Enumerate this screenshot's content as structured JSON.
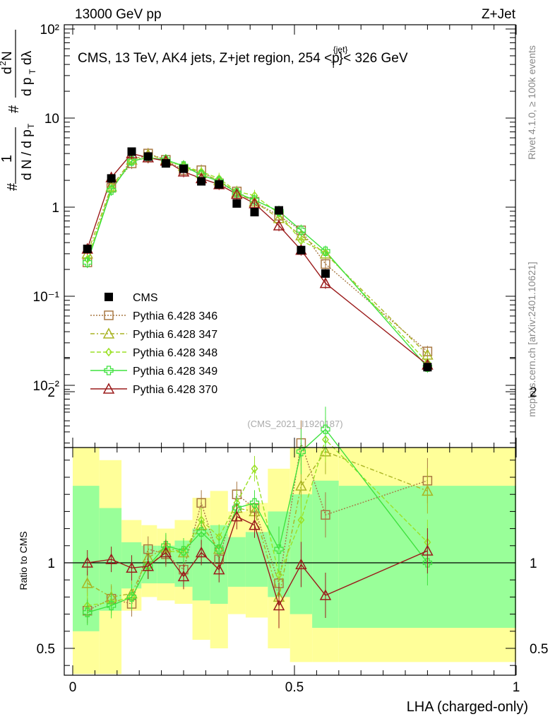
{
  "header": {
    "left": "13000 GeV pp",
    "right": "Z+Jet"
  },
  "side_text": {
    "rivet": "Rivet 4.1.0, ≥ 100k events",
    "mcplots": "mcplots.cern.ch [arXiv:2401.10621]"
  },
  "main": {
    "title": "CMS, 13 TeV, AK4 jets, Z+jet region, 254 <p",
    "title_sup": "{jet}",
    "title_sub": "T",
    "title_end": "}< 326 GeV",
    "ylabel": "1/(dN/dp_T) d²N/(dp_T dλ)",
    "watermark": "(CMS_2021_I1920187)",
    "ytick_labels": [
      "10²",
      "10",
      "1",
      "10⁻¹",
      "10⁻²"
    ]
  },
  "ratio": {
    "ylabel": "Ratio to CMS",
    "ytick_labels": [
      "2",
      "1",
      "0.5"
    ],
    "xlabel": "LHA (charged-only)",
    "xtick_labels": [
      "0",
      "0.5",
      "1"
    ]
  },
  "legend": [
    {
      "label": "CMS"
    },
    {
      "label": "Pythia 6.428 346"
    },
    {
      "label": "Pythia 6.428 347"
    },
    {
      "label": "Pythia 6.428 348"
    },
    {
      "label": "Pythia 6.428 349"
    },
    {
      "label": "Pythia 6.428 370"
    }
  ],
  "chart_data": [
    {
      "type": "scatter",
      "panel": "distribution",
      "yscale": "log",
      "xlim": [
        0,
        1
      ],
      "ylim": [
        0.002,
        100
      ],
      "xlabel": "LHA (charged-only)",
      "x": [
        0.033,
        0.087,
        0.133,
        0.17,
        0.21,
        0.25,
        0.29,
        0.33,
        0.37,
        0.41,
        0.465,
        0.515,
        0.57,
        0.8
      ],
      "series": [
        {
          "name": "CMS",
          "color": "#000000",
          "marker": "square-filled",
          "values": [
            0.34,
            2.1,
            4.2,
            3.7,
            3.1,
            2.7,
            1.95,
            1.8,
            1.1,
            0.88,
            0.92,
            0.33,
            0.18,
            0.016
          ]
        },
        {
          "name": "Pythia 6.428 346",
          "color": "#a87843",
          "marker": "square-open",
          "dash": "2,2",
          "values": [
            0.24,
            1.65,
            3.1,
            4.0,
            3.4,
            2.6,
            2.6,
            1.85,
            1.5,
            1.15,
            0.8,
            0.55,
            0.23,
            0.024
          ]
        },
        {
          "name": "Pythia 6.428 347",
          "color": "#a9b423",
          "marker": "triangle-open",
          "dash": "6,3,2,3",
          "values": [
            0.3,
            1.7,
            3.4,
            3.9,
            3.4,
            2.9,
            2.4,
            2.0,
            1.45,
            1.15,
            0.75,
            0.48,
            0.3,
            0.022
          ]
        },
        {
          "name": "Pythia 6.428 348",
          "color": "#9be126",
          "marker": "diamond-open",
          "dash": "6,3",
          "values": [
            0.26,
            1.6,
            3.3,
            3.6,
            3.3,
            2.9,
            2.5,
            2.1,
            1.5,
            1.35,
            0.85,
            0.42,
            0.31,
            0.018
          ]
        },
        {
          "name": "Pythia 6.428 349",
          "color": "#3fe23f",
          "marker": "cross-open",
          "dash": "",
          "values": [
            0.24,
            1.55,
            3.3,
            3.6,
            3.4,
            2.9,
            2.3,
            1.95,
            1.45,
            1.2,
            0.9,
            0.55,
            0.32,
            0.016
          ]
        },
        {
          "name": "Pythia 6.428 370",
          "color": "#9b1b1b",
          "marker": "triangle-open",
          "dash": "",
          "values": [
            0.34,
            2.15,
            4.0,
            3.6,
            3.3,
            2.5,
            2.1,
            1.8,
            1.4,
            1.1,
            0.62,
            0.33,
            0.14,
            0.017
          ]
        }
      ]
    },
    {
      "type": "scatter",
      "panel": "ratio",
      "xlim": [
        0,
        1
      ],
      "ylim": [
        0.35,
        2.3
      ],
      "ylabel": "Ratio to CMS",
      "x": [
        0.033,
        0.087,
        0.133,
        0.17,
        0.21,
        0.25,
        0.29,
        0.33,
        0.37,
        0.41,
        0.465,
        0.515,
        0.57,
        0.8
      ],
      "bands": {
        "edges": [
          0.0,
          0.06,
          0.11,
          0.155,
          0.19,
          0.23,
          0.27,
          0.31,
          0.35,
          0.39,
          0.44,
          0.49,
          0.54,
          0.6,
          1.0
        ],
        "yellow_low": [
          0.35,
          0.35,
          0.72,
          0.8,
          0.78,
          0.76,
          0.55,
          0.5,
          0.7,
          0.68,
          0.5,
          0.42,
          0.42,
          0.42
        ],
        "yellow_high": [
          1.85,
          1.6,
          1.25,
          1.22,
          1.2,
          1.25,
          1.38,
          1.42,
          1.3,
          1.35,
          1.55,
          1.75,
          1.9,
          1.85
        ],
        "green_low": [
          0.6,
          0.72,
          0.85,
          0.88,
          0.88,
          0.86,
          0.78,
          0.76,
          0.86,
          0.86,
          0.8,
          0.7,
          0.62,
          0.62
        ],
        "green_high": [
          1.45,
          1.32,
          1.12,
          1.1,
          1.1,
          1.13,
          1.2,
          1.22,
          1.15,
          1.18,
          1.3,
          1.4,
          1.48,
          1.45
        ]
      },
      "series": [
        {
          "name": "Pythia 6.428 346",
          "values": [
            0.72,
            0.79,
            0.76,
            1.08,
            1.05,
            0.96,
            1.35,
            1.02,
            1.4,
            1.32,
            0.88,
            1.7,
            1.28,
            1.48
          ]
        },
        {
          "name": "Pythia 6.428 347",
          "values": [
            0.88,
            0.8,
            0.82,
            1.03,
            1.09,
            1.06,
            1.22,
            1.08,
            1.32,
            1.3,
            0.8,
            1.45,
            1.65,
            1.42
          ]
        },
        {
          "name": "Pythia 6.428 348",
          "values": [
            0.75,
            0.77,
            0.8,
            0.98,
            1.07,
            1.06,
            1.25,
            1.15,
            1.35,
            1.55,
            0.93,
            1.25,
            1.72,
            1.12
          ]
        },
        {
          "name": "Pythia 6.428 349",
          "values": [
            0.71,
            0.75,
            0.8,
            0.98,
            1.1,
            1.07,
            1.18,
            1.08,
            1.32,
            1.35,
            1.08,
            1.65,
            1.78,
            1.0
          ]
        },
        {
          "name": "Pythia 6.428 370",
          "values": [
            1.0,
            1.02,
            0.97,
            0.98,
            1.06,
            0.92,
            1.06,
            0.96,
            1.27,
            1.22,
            0.75,
            0.99,
            0.81,
            1.07
          ]
        }
      ]
    }
  ]
}
